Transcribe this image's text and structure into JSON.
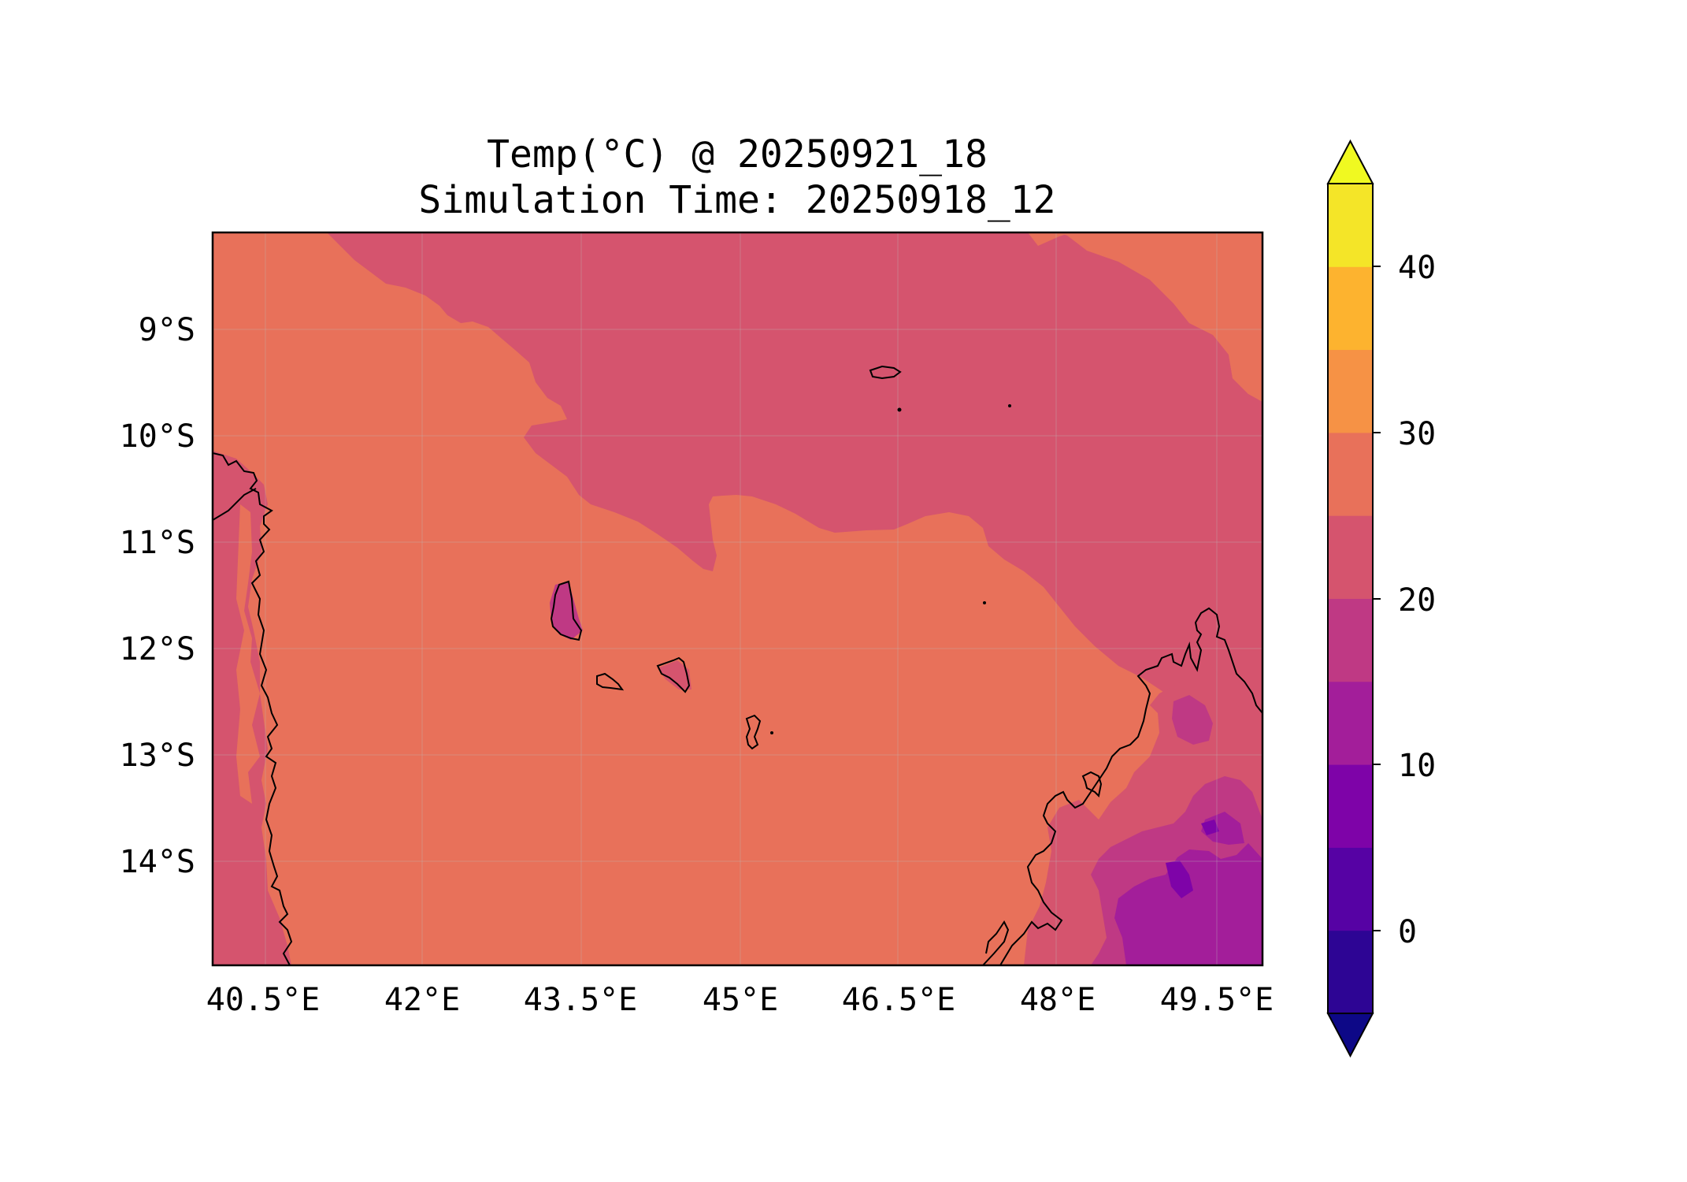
{
  "map": {
    "title_line1": "Temp(°C) @ 20250921_18",
    "title_line2": "Simulation Time: 20250918_12",
    "lon_ticks": [
      "40.5°E",
      "42°E",
      "43.5°E",
      "45°E",
      "46.5°E",
      "48°E",
      "49.5°E"
    ],
    "lat_ticks": [
      "9°S",
      "10°S",
      "11°S",
      "12°S",
      "13°S",
      "14°S"
    ],
    "extent": {
      "lon_min": 40.0,
      "lon_max": 49.9,
      "lat_min": -14.97,
      "lat_max": -8.07
    },
    "variable": "Temp",
    "unit": "°C"
  },
  "colorbar": {
    "tick_labels": [
      "40",
      "30",
      "20",
      "10",
      "0"
    ],
    "levels": [
      -5,
      0,
      5,
      10,
      15,
      20,
      25,
      30,
      35,
      40,
      45
    ],
    "extend": "both",
    "colormap": "plasma",
    "band_colors": [
      "#2d0594",
      "#5602a4",
      "#7e03a8",
      "#a31e9a",
      "#bf3984",
      "#d5546e",
      "#e8715a",
      "#f69245",
      "#fdb32f",
      "#f4e528"
    ],
    "under_color": "#0d0887",
    "over_color": "#f0f921"
  },
  "colors": {
    "zone_20_25": "#d5546e",
    "zone_25_30": "#e8715a",
    "zone_15_20": "#bf3984",
    "zone_10_15": "#a31e9a",
    "zone_5_10": "#7e03a8",
    "coastline": "#000000"
  }
}
